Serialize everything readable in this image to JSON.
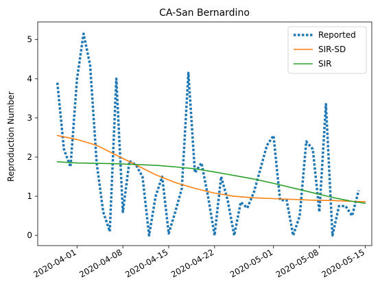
{
  "chart_data": {
    "type": "line",
    "title": "CA-San Bernardino",
    "xlabel": "",
    "ylabel": "Reproduction Number",
    "x_range": [
      "2020-03-26",
      "2020-05-16"
    ],
    "ylim": [
      -0.26,
      5.45
    ],
    "y_ticks": [
      0,
      1,
      2,
      3,
      4,
      5
    ],
    "x_ticks": [
      "2020-04-01",
      "2020-04-08",
      "2020-04-15",
      "2020-04-22",
      "2020-05-01",
      "2020-05-08",
      "2020-05-15"
    ],
    "grid": false,
    "legend_position": "top-right",
    "series": [
      {
        "name": "Reported",
        "color": "#1f77b4",
        "style": "dotted",
        "points": [
          [
            "2020-03-29",
            3.9
          ],
          [
            "2020-03-30",
            2.2
          ],
          [
            "2020-03-31",
            1.75
          ],
          [
            "2020-04-01",
            4.0
          ],
          [
            "2020-04-02",
            5.15
          ],
          [
            "2020-04-03",
            4.35
          ],
          [
            "2020-04-04",
            1.85
          ],
          [
            "2020-04-05",
            0.6
          ],
          [
            "2020-04-06",
            0.1
          ],
          [
            "2020-04-07",
            4.0
          ],
          [
            "2020-04-08",
            0.6
          ],
          [
            "2020-04-09",
            1.9
          ],
          [
            "2020-04-10",
            1.8
          ],
          [
            "2020-04-11",
            1.5
          ],
          [
            "2020-04-12",
            0.0
          ],
          [
            "2020-04-13",
            1.0
          ],
          [
            "2020-04-14",
            1.5
          ],
          [
            "2020-04-15",
            0.05
          ],
          [
            "2020-04-16",
            0.6
          ],
          [
            "2020-04-17",
            1.2
          ],
          [
            "2020-04-18",
            4.15
          ],
          [
            "2020-04-19",
            1.6
          ],
          [
            "2020-04-20",
            1.85
          ],
          [
            "2020-04-21",
            1.0
          ],
          [
            "2020-04-22",
            0.0
          ],
          [
            "2020-04-23",
            1.5
          ],
          [
            "2020-04-24",
            0.9
          ],
          [
            "2020-04-25",
            0.0
          ],
          [
            "2020-04-26",
            0.85
          ],
          [
            "2020-04-27",
            0.7
          ],
          [
            "2020-04-28",
            1.1
          ],
          [
            "2020-04-29",
            1.7
          ],
          [
            "2020-04-30",
            2.3
          ],
          [
            "2020-05-01",
            2.55
          ],
          [
            "2020-05-02",
            0.9
          ],
          [
            "2020-05-03",
            0.9
          ],
          [
            "2020-05-04",
            0.0
          ],
          [
            "2020-05-05",
            0.5
          ],
          [
            "2020-05-06",
            2.4
          ],
          [
            "2020-05-07",
            2.2
          ],
          [
            "2020-05-08",
            0.6
          ],
          [
            "2020-05-09",
            3.35
          ],
          [
            "2020-05-10",
            0.0
          ],
          [
            "2020-05-11",
            0.75
          ],
          [
            "2020-05-12",
            0.75
          ],
          [
            "2020-05-13",
            0.5
          ],
          [
            "2020-05-14",
            1.15
          ]
        ]
      },
      {
        "name": "SIR-SD",
        "color": "#ff7f0e",
        "style": "solid",
        "points": [
          [
            "2020-03-29",
            2.55
          ],
          [
            "2020-04-01",
            2.45
          ],
          [
            "2020-04-04",
            2.3
          ],
          [
            "2020-04-07",
            2.05
          ],
          [
            "2020-04-10",
            1.8
          ],
          [
            "2020-04-13",
            1.55
          ],
          [
            "2020-04-16",
            1.35
          ],
          [
            "2020-04-19",
            1.2
          ],
          [
            "2020-04-22",
            1.08
          ],
          [
            "2020-04-25",
            1.0
          ],
          [
            "2020-04-28",
            0.96
          ],
          [
            "2020-05-01",
            0.94
          ],
          [
            "2020-05-04",
            0.92
          ],
          [
            "2020-05-07",
            0.9
          ],
          [
            "2020-05-10",
            0.89
          ],
          [
            "2020-05-13",
            0.87
          ],
          [
            "2020-05-15",
            0.86
          ]
        ]
      },
      {
        "name": "SIR",
        "color": "#2ca02c",
        "style": "solid",
        "points": [
          [
            "2020-03-29",
            1.88
          ],
          [
            "2020-04-01",
            1.85
          ],
          [
            "2020-04-04",
            1.84
          ],
          [
            "2020-04-07",
            1.83
          ],
          [
            "2020-04-10",
            1.81
          ],
          [
            "2020-04-13",
            1.79
          ],
          [
            "2020-04-16",
            1.75
          ],
          [
            "2020-04-19",
            1.7
          ],
          [
            "2020-04-22",
            1.62
          ],
          [
            "2020-04-25",
            1.53
          ],
          [
            "2020-04-28",
            1.44
          ],
          [
            "2020-05-01",
            1.33
          ],
          [
            "2020-05-04",
            1.21
          ],
          [
            "2020-05-07",
            1.09
          ],
          [
            "2020-05-10",
            0.97
          ],
          [
            "2020-05-13",
            0.87
          ],
          [
            "2020-05-15",
            0.82
          ]
        ]
      }
    ]
  }
}
